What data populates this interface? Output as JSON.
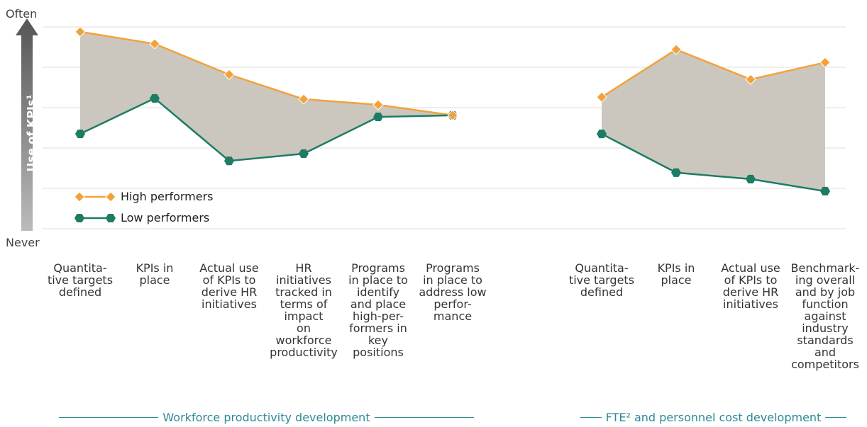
{
  "chart_data": {
    "type": "line",
    "y_top_label": "Often",
    "y_bottom_label": "Never",
    "ylabel": "Use of KPIs¹",
    "categories": [
      "Quantita-\ntive targets\ndefined",
      "KPIs in\nplace",
      "Actual use\nof KPIs to\nderive HR\ninitiatives",
      "HR\ninitiatives\ntracked in\nterms of\nimpact\non\nworkforce\nproductivity",
      "Programs\nin place to\nidentify\nand place\nhigh-per-\nformers in\nkey\npositions",
      "Programs\nin place to\naddress low\nperfor-\nmance",
      null,
      "Quantita-\ntive targets\ndefined",
      "KPIs in\nplace",
      "Actual use\nof KPIs to\nderive HR\ninitiatives",
      "Benchmark-\ning overall\nand by job\nfunction\nagainst\nindustry\nstandards\nand\ncompetitors"
    ],
    "groups": [
      {
        "label": "Workforce productivity development",
        "start": 0,
        "end": 5
      },
      {
        "label": "FTE² and personnel cost development",
        "start": 7,
        "end": 10
      }
    ],
    "series": [
      {
        "name": "High performers",
        "color": "#f2a23a",
        "values": [
          4.88,
          4.58,
          3.82,
          3.21,
          3.07,
          2.81,
          null,
          3.26,
          4.44,
          3.7,
          4.12
        ]
      },
      {
        "name": "Low performers",
        "color": "#1d7c63",
        "values": [
          2.35,
          3.23,
          1.68,
          1.86,
          2.77,
          2.81,
          null,
          2.35,
          1.39,
          1.23,
          0.93
        ]
      }
    ],
    "area_color": "#cbc7bf",
    "ylim": [
      0,
      5
    ],
    "yticks": [
      0,
      1,
      2,
      3,
      4,
      5
    ],
    "grid": true,
    "legend": "lower left"
  }
}
